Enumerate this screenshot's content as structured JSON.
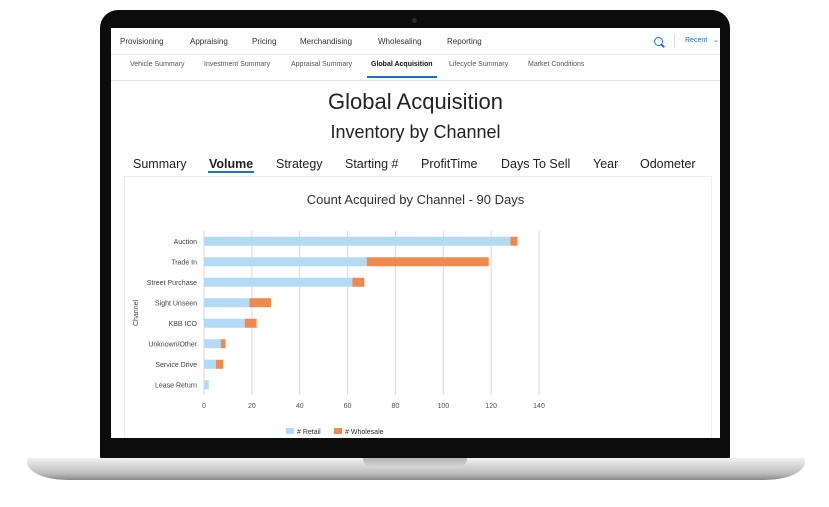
{
  "nav": {
    "main_items": [
      "Provisioning",
      "Appraising",
      "Pricing",
      "Merchandising",
      "Wholesaling",
      "Reporting"
    ],
    "recent_label": "Recent",
    "chevron": "⌄",
    "search_icon": "search-icon"
  },
  "subnav": {
    "items": [
      "Vehicle Summary",
      "Investment Summary",
      "Appraisal Summary",
      "Global Acquisition",
      "Lifecycle Summary",
      "Market Conditions"
    ],
    "active": "Global Acquisition"
  },
  "page": {
    "title": "Global Acquisition",
    "subtitle": "Inventory by Channel"
  },
  "tabs": {
    "items": [
      "Summary",
      "Volume",
      "Strategy",
      "Starting #",
      "ProfitTime",
      "Days To Sell",
      "Year",
      "Odometer"
    ],
    "active": "Volume"
  },
  "colors": {
    "accent": "#1a73c9",
    "retail": "#b4dbf5",
    "wholesale": "#ef8a4c",
    "grid": "#d9d9d9"
  },
  "chart_data": {
    "type": "bar",
    "orientation": "horizontal",
    "stacked": true,
    "title": "Count Acquired by Channel - 90 Days",
    "xlabel": "",
    "ylabel": "Channel",
    "categories": [
      "Auction",
      "Trade In",
      "Street Purchase",
      "Sight Unseen",
      "KBB ICO",
      "Unknown/Other",
      "Service Drive",
      "Lease Return"
    ],
    "series": [
      {
        "name": "# Retail",
        "values": [
          128,
          68,
          62,
          19,
          17,
          7,
          5,
          2
        ]
      },
      {
        "name": "# Wholesale",
        "values": [
          3,
          51,
          5,
          9,
          5,
          2,
          3,
          0
        ]
      }
    ],
    "xlim": [
      0,
      140
    ],
    "xticks": [
      "0",
      "20",
      "40",
      "60",
      "80",
      "100",
      "120",
      "140"
    ],
    "grid": true,
    "legend_position": "bottom"
  }
}
